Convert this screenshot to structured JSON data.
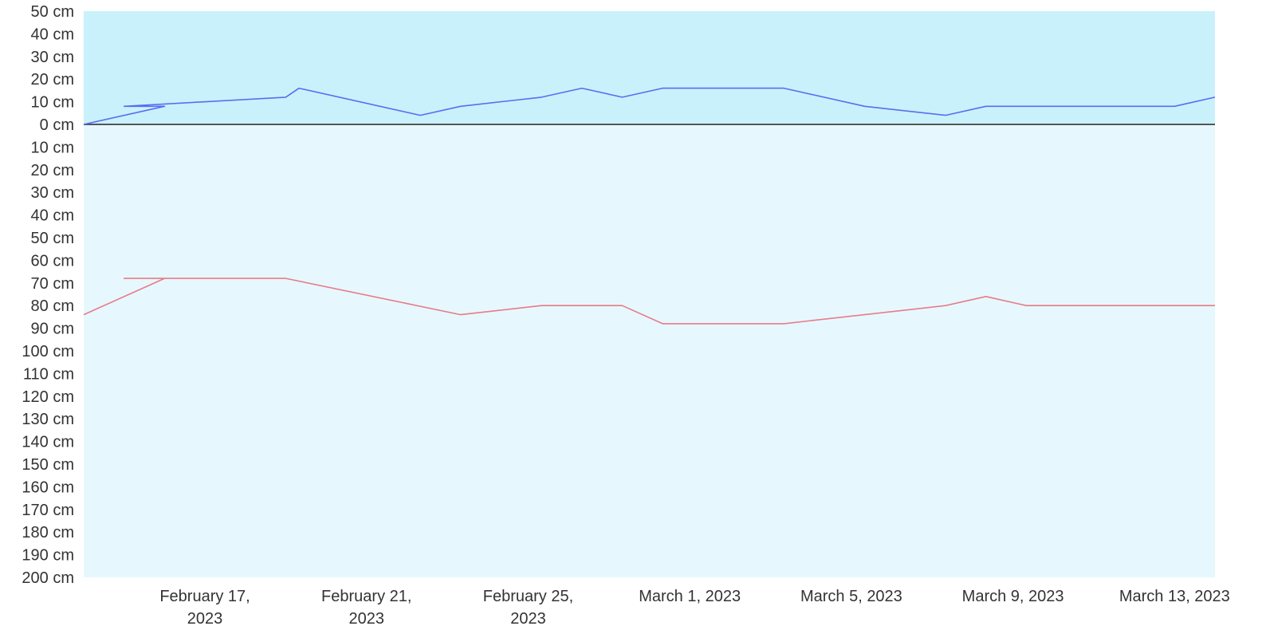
{
  "chart_data": {
    "type": "line",
    "x_type": "date",
    "x_range": [
      "2023-02-14",
      "2023-03-14"
    ],
    "x_ticks": [
      {
        "date": "2023-02-17",
        "label": [
          "February 17,",
          "2023"
        ]
      },
      {
        "date": "2023-02-21",
        "label": [
          "February 21,",
          "2023"
        ]
      },
      {
        "date": "2023-02-25",
        "label": [
          "February 25,",
          "2023"
        ]
      },
      {
        "date": "2023-03-01",
        "label": [
          "March 1, 2023"
        ]
      },
      {
        "date": "2023-03-05",
        "label": [
          "March 5, 2023"
        ]
      },
      {
        "date": "2023-03-09",
        "label": [
          "March 9, 2023"
        ]
      },
      {
        "date": "2023-03-13",
        "label": [
          "March 13, 2023"
        ]
      }
    ],
    "y_ticks": [
      "50 cm",
      "40 cm",
      "30 cm",
      "20 cm",
      "10 cm",
      "0 cm",
      "10 cm",
      "20 cm",
      "30 cm",
      "40 cm",
      "50 cm",
      "60 cm",
      "70 cm",
      "80 cm",
      "90 cm",
      "100 cm",
      "110 cm",
      "120 cm",
      "130 cm",
      "140 cm",
      "150 cm",
      "160 cm",
      "170 cm",
      "180 cm",
      "190 cm",
      "200 cm"
    ],
    "y_range": [
      50,
      -200
    ],
    "unit": "cm",
    "grid": false,
    "zero_line": true,
    "regions": [
      {
        "from": 0,
        "to": 50,
        "color": "#c9f1fc"
      },
      {
        "from": -200,
        "to": 0,
        "color": "#e6f8fd"
      }
    ],
    "series": [
      {
        "color": "#5b6cf0",
        "points": [
          [
            "2023-02-14",
            0
          ],
          [
            "2023-02-16",
            8
          ],
          [
            "2023-02-15",
            8
          ],
          [
            "2023-02-19",
            12
          ],
          [
            "2023-02-19.33",
            16
          ],
          [
            "2023-02-22.33",
            4
          ],
          [
            "2023-02-23.33",
            8
          ],
          [
            "2023-02-25.33",
            12
          ],
          [
            "2023-02-26.33",
            16
          ],
          [
            "2023-02-27.33",
            12
          ],
          [
            "2023-02-28.33",
            16
          ],
          [
            "2023-03-03.33",
            16
          ],
          [
            "2023-03-05.33",
            8
          ],
          [
            "2023-03-07.33",
            4
          ],
          [
            "2023-03-08.33",
            8
          ],
          [
            "2023-03-13",
            8
          ],
          [
            "2023-03-14",
            12
          ]
        ]
      },
      {
        "color": "#e87b8a",
        "points": [
          [
            "2023-02-14",
            -84
          ],
          [
            "2023-02-16",
            -68
          ],
          [
            "2023-02-15",
            -68
          ],
          [
            "2023-02-19",
            -68
          ],
          [
            "2023-02-23.33",
            -84
          ],
          [
            "2023-02-25.33",
            -80
          ],
          [
            "2023-02-27.33",
            -80
          ],
          [
            "2023-02-28.33",
            -88
          ],
          [
            "2023-03-03.33",
            -88
          ],
          [
            "2023-03-07.33",
            -80
          ],
          [
            "2023-03-08.33",
            -76
          ],
          [
            "2023-03-09.33",
            -80
          ],
          [
            "2023-03-14",
            -80
          ]
        ]
      }
    ]
  }
}
